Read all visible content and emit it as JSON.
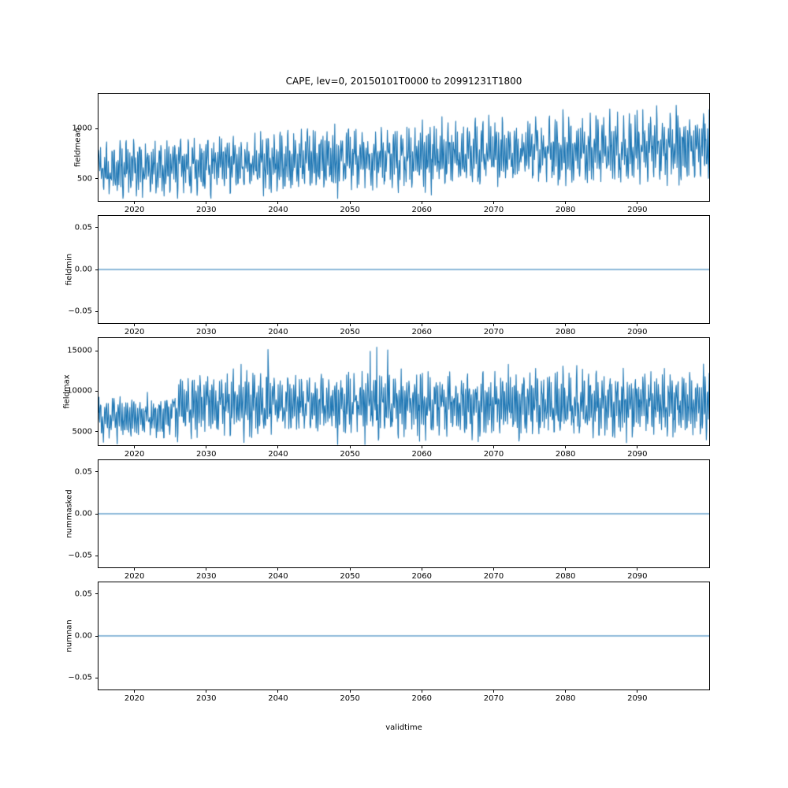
{
  "figure": {
    "title": "CAPE, lev=0, 20150101T0000 to 20991231T1800",
    "xlabel": "validtime",
    "line_color": "#1f77b4",
    "background": "#ffffff",
    "axis_color": "#000000"
  },
  "chart_data": [
    {
      "type": "line",
      "ylabel": "fieldmean",
      "x_range": [
        2015,
        2100
      ],
      "x_ticks": [
        2020,
        2030,
        2040,
        2050,
        2060,
        2070,
        2080,
        2090
      ],
      "ylim": [
        280,
        1345
      ],
      "y_ticks": [
        500,
        1000
      ],
      "y_tick_labels": [
        "500",
        "1000"
      ],
      "grid": false,
      "legend": "none",
      "series": {
        "name": "fieldmean",
        "kind": "noisy",
        "seed": 42,
        "points": 1500,
        "mean_start": 590,
        "mean_end": 830,
        "amp_start": 250,
        "amp_end": 330,
        "clamp": [
          305,
          1340
        ],
        "description": "Dense high-frequency oscillation between about 330 and 950 in 2015 rising to between about 400 and 1330 by 2099, upward trend in mean from about 600 to 800"
      }
    },
    {
      "type": "line",
      "ylabel": "fieldmin",
      "x_range": [
        2015,
        2100
      ],
      "x_ticks": [
        2020,
        2030,
        2040,
        2050,
        2060,
        2070,
        2080,
        2090
      ],
      "ylim": [
        -0.064,
        0.064
      ],
      "y_ticks": [
        -0.05,
        0.0,
        0.05
      ],
      "y_tick_labels": [
        "−0.05",
        "0.00",
        "0.05"
      ],
      "grid": false,
      "legend": "none",
      "series": {
        "name": "fieldmin",
        "kind": "constant",
        "value": 0.0,
        "description": "Constant zero line for the whole period 2015-2099"
      }
    },
    {
      "type": "line",
      "ylabel": "fieldmax",
      "x_range": [
        2015,
        2100
      ],
      "x_ticks": [
        2020,
        2030,
        2040,
        2050,
        2060,
        2070,
        2080,
        2090
      ],
      "ylim": [
        3300,
        16600
      ],
      "y_ticks": [
        5000,
        10000,
        15000
      ],
      "y_tick_labels": [
        "5000",
        "10000",
        "15000"
      ],
      "grid": false,
      "legend": "none",
      "series": {
        "name": "fieldmax",
        "kind": "noisy-step",
        "seed": 7,
        "points": 1500,
        "mean_early": 6700,
        "mean_late": 8400,
        "amp_early": 2500,
        "amp_late": 3800,
        "step_t": 0.1,
        "clamp": [
          3400,
          15600
        ],
        "spikes": {
          "prob": 0.004,
          "t_min": 0.1,
          "t_max": 0.52,
          "base": 14700,
          "range": 800
        },
        "description": "Dense oscillation roughly 3500-11000 until about 2024, then roughly 4000-14000 with occasional spikes to about 15500 between 2025 and 2058"
      }
    },
    {
      "type": "line",
      "ylabel": "nummasked",
      "x_range": [
        2015,
        2100
      ],
      "x_ticks": [
        2020,
        2030,
        2040,
        2050,
        2060,
        2070,
        2080,
        2090
      ],
      "ylim": [
        -0.064,
        0.064
      ],
      "y_ticks": [
        -0.05,
        0.0,
        0.05
      ],
      "y_tick_labels": [
        "−0.05",
        "0.00",
        "0.05"
      ],
      "grid": false,
      "legend": "none",
      "series": {
        "name": "nummasked",
        "kind": "constant",
        "value": 0.0,
        "description": "Constant zero line for the whole period 2015-2099"
      }
    },
    {
      "type": "line",
      "ylabel": "numnan",
      "x_range": [
        2015,
        2100
      ],
      "x_ticks": [
        2020,
        2030,
        2040,
        2050,
        2060,
        2070,
        2080,
        2090
      ],
      "ylim": [
        -0.064,
        0.064
      ],
      "y_ticks": [
        -0.05,
        0.0,
        0.05
      ],
      "y_tick_labels": [
        "−0.05",
        "0.00",
        "0.05"
      ],
      "grid": false,
      "legend": "none",
      "series": {
        "name": "numnan",
        "kind": "constant",
        "value": 0.0,
        "description": "Constant zero line for the whole period 2015-2099"
      }
    }
  ]
}
